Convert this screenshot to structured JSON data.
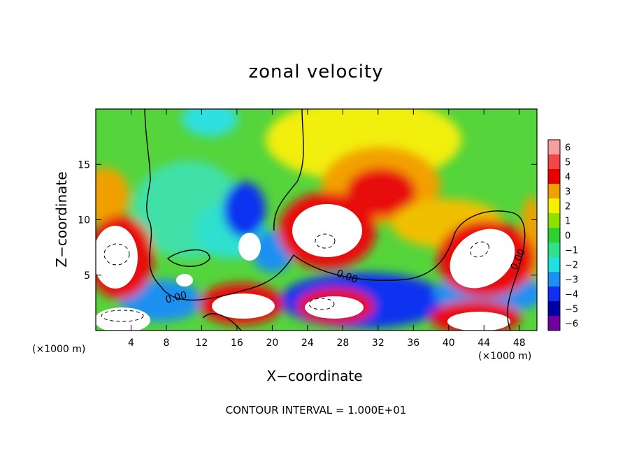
{
  "title": "zonal velocity",
  "footer": "CONTOUR INTERVAL = 1.000E+01",
  "chart_data": {
    "type": "heatmap",
    "title": "zonal velocity",
    "xlabel": "X−coordinate",
    "ylabel": "Z−coordinate",
    "x_unit_label": "(×1000 m)",
    "xlim": [
      0,
      50
    ],
    "ylim": [
      0,
      20
    ],
    "x_ticks": [
      4,
      8,
      12,
      16,
      20,
      24,
      28,
      32,
      36,
      40,
      44,
      48
    ],
    "x_tick_labels": [
      "4",
      "8",
      "12",
      "16",
      "20",
      "24",
      "28",
      "32",
      "36",
      "40",
      "44",
      "48"
    ],
    "y_ticks": [
      5,
      10,
      15
    ],
    "y_tick_labels": [
      "5",
      "10",
      "15"
    ],
    "colorbar": {
      "min": -6,
      "max": 6,
      "ticks": [
        6,
        5,
        4,
        3,
        2,
        1,
        0,
        -1,
        -2,
        -3,
        -4,
        -5,
        -6
      ],
      "tick_labels": [
        "6",
        "5",
        "4",
        "3",
        "2",
        "1",
        "0",
        "−1",
        "−2",
        "−3",
        "−4",
        "−5",
        "−6"
      ],
      "colors": [
        "#f4a0a0",
        "#f04848",
        "#e60000",
        "#f0a000",
        "#f5f000",
        "#90e000",
        "#30d030",
        "#30e08a",
        "#20e0e0",
        "#2090f0",
        "#1030f0",
        "#0000a0",
        "#7000a0"
      ]
    },
    "contour_labels": [
      "0.00",
      "0.00",
      "0.00",
      "0.00"
    ],
    "features": [
      {
        "type": "jet",
        "x": 4,
        "z": 7,
        "value": 6
      },
      {
        "type": "jet",
        "x": 28,
        "z": 10,
        "value": 6
      },
      {
        "type": "jet",
        "x": 42,
        "z": 7,
        "value": 6
      },
      {
        "type": "jet",
        "x": 18,
        "z": 2,
        "value": 6
      },
      {
        "type": "jet",
        "x": 32,
        "z": 14,
        "value": 4
      },
      {
        "type": "jet",
        "x": 18,
        "z": 7,
        "value": -6
      },
      {
        "type": "jet",
        "x": 36,
        "z": 3,
        "value": -6
      },
      {
        "type": "jet",
        "x": 10,
        "z": 4.5,
        "value": -5
      }
    ]
  }
}
